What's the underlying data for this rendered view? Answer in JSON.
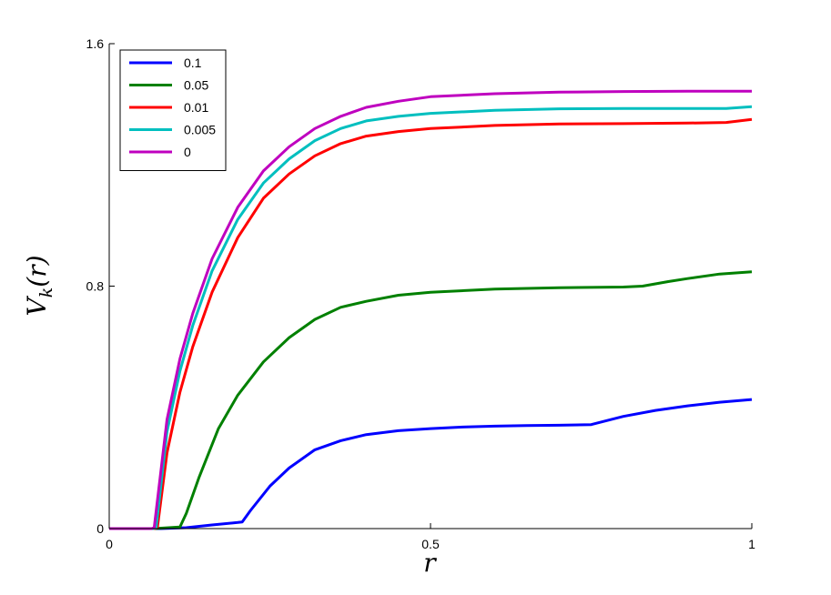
{
  "chart_data": {
    "type": "line",
    "xlabel": "r",
    "ylabel_main": "V",
    "ylabel_sub": "k",
    "ylabel_arg": "(r)",
    "xlim": [
      0,
      1
    ],
    "ylim": [
      0,
      1.6
    ],
    "x_ticks": [
      0,
      0.5,
      1
    ],
    "y_ticks": [
      0,
      0.8,
      1.6
    ],
    "x_tick_labels": [
      "0",
      "0.5",
      "1"
    ],
    "y_tick_labels": [
      "0",
      "0.8",
      "1.6"
    ],
    "grid": false,
    "legend_position": "top-left",
    "series": [
      {
        "name": "0.1",
        "color": "#0000ff",
        "points": [
          [
            0,
            0
          ],
          [
            0.08,
            0
          ],
          [
            0.12,
            0.003
          ],
          [
            0.16,
            0.012
          ],
          [
            0.2,
            0.02
          ],
          [
            0.207,
            0.022
          ],
          [
            0.22,
            0.06
          ],
          [
            0.25,
            0.14
          ],
          [
            0.28,
            0.2
          ],
          [
            0.32,
            0.26
          ],
          [
            0.36,
            0.29
          ],
          [
            0.4,
            0.31
          ],
          [
            0.45,
            0.323
          ],
          [
            0.5,
            0.33
          ],
          [
            0.55,
            0.335
          ],
          [
            0.6,
            0.338
          ],
          [
            0.65,
            0.34
          ],
          [
            0.7,
            0.341
          ],
          [
            0.75,
            0.343
          ],
          [
            0.8,
            0.37
          ],
          [
            0.85,
            0.39
          ],
          [
            0.9,
            0.405
          ],
          [
            0.95,
            0.417
          ],
          [
            1.0,
            0.426
          ]
        ]
      },
      {
        "name": "0.05",
        "color": "#008000",
        "points": [
          [
            0,
            0
          ],
          [
            0.07,
            0
          ],
          [
            0.11,
            0.005
          ],
          [
            0.12,
            0.05
          ],
          [
            0.14,
            0.17
          ],
          [
            0.17,
            0.33
          ],
          [
            0.2,
            0.44
          ],
          [
            0.24,
            0.55
          ],
          [
            0.28,
            0.63
          ],
          [
            0.32,
            0.69
          ],
          [
            0.36,
            0.73
          ],
          [
            0.4,
            0.75
          ],
          [
            0.45,
            0.77
          ],
          [
            0.5,
            0.78
          ],
          [
            0.6,
            0.79
          ],
          [
            0.7,
            0.795
          ],
          [
            0.8,
            0.797
          ],
          [
            0.83,
            0.8
          ],
          [
            0.87,
            0.815
          ],
          [
            0.9,
            0.825
          ],
          [
            0.95,
            0.84
          ],
          [
            1.0,
            0.847
          ]
        ]
      },
      {
        "name": "0.01",
        "color": "#ff0000",
        "points": [
          [
            0,
            0
          ],
          [
            0.07,
            0
          ],
          [
            0.075,
            0.003
          ],
          [
            0.09,
            0.25
          ],
          [
            0.11,
            0.45
          ],
          [
            0.13,
            0.6
          ],
          [
            0.16,
            0.78
          ],
          [
            0.2,
            0.96
          ],
          [
            0.24,
            1.09
          ],
          [
            0.28,
            1.17
          ],
          [
            0.32,
            1.23
          ],
          [
            0.36,
            1.27
          ],
          [
            0.4,
            1.295
          ],
          [
            0.45,
            1.31
          ],
          [
            0.5,
            1.32
          ],
          [
            0.6,
            1.33
          ],
          [
            0.7,
            1.335
          ],
          [
            0.8,
            1.336
          ],
          [
            0.9,
            1.338
          ],
          [
            0.96,
            1.34
          ],
          [
            1.0,
            1.35
          ]
        ]
      },
      {
        "name": "0.005",
        "color": "#00bfbf",
        "points": [
          [
            0,
            0
          ],
          [
            0.068,
            0
          ],
          [
            0.073,
            0.003
          ],
          [
            0.09,
            0.32
          ],
          [
            0.11,
            0.52
          ],
          [
            0.13,
            0.67
          ],
          [
            0.16,
            0.85
          ],
          [
            0.2,
            1.02
          ],
          [
            0.24,
            1.14
          ],
          [
            0.28,
            1.22
          ],
          [
            0.32,
            1.28
          ],
          [
            0.36,
            1.32
          ],
          [
            0.4,
            1.345
          ],
          [
            0.45,
            1.36
          ],
          [
            0.5,
            1.37
          ],
          [
            0.6,
            1.38
          ],
          [
            0.7,
            1.385
          ],
          [
            0.8,
            1.386
          ],
          [
            0.9,
            1.386
          ],
          [
            0.96,
            1.386
          ],
          [
            1.0,
            1.392
          ]
        ]
      },
      {
        "name": "0",
        "color": "#bf00bf",
        "points": [
          [
            0,
            0
          ],
          [
            0.066,
            0
          ],
          [
            0.07,
            0.003
          ],
          [
            0.09,
            0.36
          ],
          [
            0.11,
            0.56
          ],
          [
            0.13,
            0.71
          ],
          [
            0.16,
            0.89
          ],
          [
            0.2,
            1.06
          ],
          [
            0.24,
            1.18
          ],
          [
            0.28,
            1.26
          ],
          [
            0.32,
            1.32
          ],
          [
            0.36,
            1.36
          ],
          [
            0.4,
            1.39
          ],
          [
            0.45,
            1.41
          ],
          [
            0.5,
            1.425
          ],
          [
            0.6,
            1.435
          ],
          [
            0.7,
            1.44
          ],
          [
            0.8,
            1.442
          ],
          [
            0.9,
            1.443
          ],
          [
            1.0,
            1.443
          ]
        ]
      }
    ]
  }
}
